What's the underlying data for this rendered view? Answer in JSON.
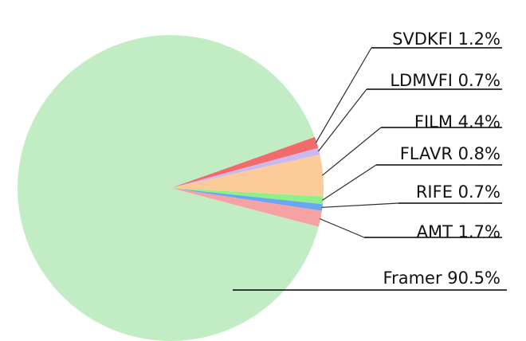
{
  "chart_data": {
    "type": "pie",
    "title": "",
    "slices": [
      {
        "name": "SVDKFI",
        "value": 1.2,
        "label": "SVDKFI 1.2%",
        "color": "#f26b6b"
      },
      {
        "name": "LDMVFI",
        "value": 0.7,
        "label": "LDMVFI 0.7%",
        "color": "#c9b9ee"
      },
      {
        "name": "FILM",
        "value": 4.4,
        "label": "FILM 4.4%",
        "color": "#fbcb9a"
      },
      {
        "name": "FLAVR",
        "value": 0.8,
        "label": "FLAVR 0.8%",
        "color": "#8ff08a"
      },
      {
        "name": "RIFE",
        "value": 0.7,
        "label": "RIFE 0.7%",
        "color": "#6aa7f2"
      },
      {
        "name": "AMT",
        "value": 1.7,
        "label": "AMT 1.7%",
        "color": "#f7a2a2"
      },
      {
        "name": "Framer",
        "value": 90.5,
        "label": "Framer 90.5%",
        "color": "#c2edc4"
      }
    ],
    "legend": "right, labels with leader lines"
  }
}
